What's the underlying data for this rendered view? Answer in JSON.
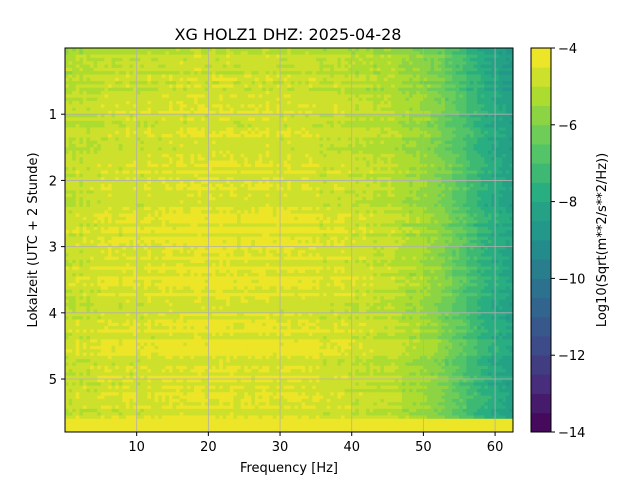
{
  "chart_data": {
    "type": "heatmap",
    "title": "XG HOLZ1  DHZ: 2025-04-28",
    "xlabel": "Frequency [Hz]",
    "ylabel": "Lokalzeit (UTC + 2 Stunde)",
    "xlim": [
      0,
      62.5
    ],
    "ylim": [
      5.8,
      0
    ],
    "y_inverted": true,
    "x_ticks": [
      10,
      20,
      30,
      40,
      50,
      60
    ],
    "y_ticks": [
      1,
      2,
      3,
      4,
      5
    ],
    "grid": true,
    "colormap": "viridis",
    "colorbar": {
      "label": "Log10(Sqrt(m**2/s**2/Hz))",
      "range": [
        -14,
        -4
      ],
      "ticks": [
        -4,
        -6,
        -8,
        -10,
        -12,
        -14
      ],
      "levels": 20
    },
    "frequency_profile": {
      "frequency_hz": [
        0,
        2,
        5,
        10,
        20,
        30,
        40,
        45,
        48,
        50,
        52,
        55,
        58,
        60,
        62.5
      ],
      "log10_amplitude": [
        -4.9,
        -4.8,
        -4.7,
        -4.6,
        -4.5,
        -4.5,
        -4.8,
        -5.0,
        -5.2,
        -5.5,
        -5.9,
        -6.6,
        -7.4,
        -7.9,
        -8.3
      ]
    },
    "time_adjustment": {
      "time_h": [
        0,
        1,
        2,
        3,
        4,
        5,
        5.6
      ],
      "delta_log10": [
        -0.4,
        -0.15,
        0.0,
        0.1,
        0.05,
        0.0,
        0.0
      ]
    },
    "bottom_band": {
      "time_h_start": 5.6,
      "time_h_end": 5.8,
      "log10_amplitude": -4.0
    }
  }
}
